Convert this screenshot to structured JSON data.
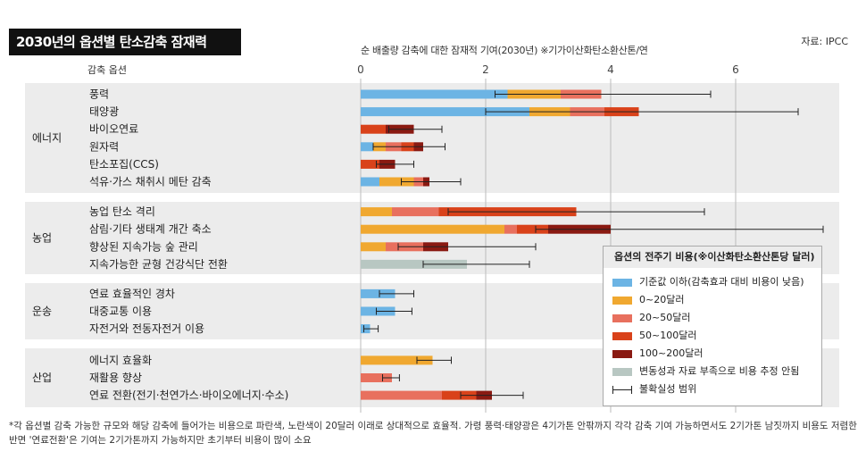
{
  "header": {
    "title": "2030년의 옵션별 탄소감축 잠재력",
    "source": "자료: IPCC",
    "axis_title": "순 배출량 감축에 대한 잠재적 기여(2030년) ※기가이산화탄소환산톤/연",
    "column_label": "감축 옵션"
  },
  "legend": {
    "title": "옵션의 전주기 비용(※이산화탄소환산톤당 달러)",
    "items": [
      {
        "label": "기준값 이하(감축효과 대비 비용이 낮음)",
        "color": "#6cb4e4"
      },
      {
        "label": "0~20달러",
        "color": "#f0a830"
      },
      {
        "label": "20~50달러",
        "color": "#e8705e"
      },
      {
        "label": "50~100달러",
        "color": "#d9421a"
      },
      {
        "label": "100~200달러",
        "color": "#8a1a12"
      },
      {
        "label": "변동성과 자료 부족으로 비용 추정 안됨",
        "color": "#b8c7c2"
      }
    ],
    "error_label": "불확실성 범위"
  },
  "footnote": "*각 옵션별 감축 가능한 규모와 해당 감축에 들어가는 비용으로 파란색, 노란색이 20달러 이래로 상대적으로 효율적. 가령 풍력·태양광은 4기가톤 안팎까지 각각 감축 기여 가능하면서도 2기가톤 남짓까지 비용도 저렴한 반면 '연료전환'은 기여는 2기가톤까지 가능하지만 초기부터 비용이 많이 소요",
  "chart_data": {
    "type": "bar",
    "orientation": "horizontal-stacked",
    "x_ticks": [
      "0",
      "2",
      "4",
      "6"
    ],
    "xlim": [
      0,
      7.6
    ],
    "cost_colors": [
      "#6cb4e4",
      "#f0a830",
      "#e8705e",
      "#d9421a",
      "#8a1a12",
      "#b8c7c2"
    ],
    "sectors": [
      {
        "name": "에너지",
        "options": [
          {
            "label": "풍력",
            "segments": [
              [
                0,
                2.35
              ],
              [
                1,
                0.85
              ],
              [
                2,
                0.65
              ]
            ],
            "err": [
              2.15,
              5.6
            ]
          },
          {
            "label": "태양광",
            "segments": [
              [
                0,
                2.7
              ],
              [
                1,
                0.65
              ],
              [
                2,
                0.55
              ],
              [
                3,
                0.55
              ]
            ],
            "err": [
              2.0,
              7.0
            ]
          },
          {
            "label": "바이오연료",
            "segments": [
              [
                3,
                0.4
              ],
              [
                4,
                0.45
              ]
            ],
            "err": [
              0.45,
              1.3
            ]
          },
          {
            "label": "원자력",
            "segments": [
              [
                0,
                0.2
              ],
              [
                1,
                0.2
              ],
              [
                2,
                0.25
              ],
              [
                3,
                0.2
              ],
              [
                4,
                0.15
              ]
            ],
            "err": [
              0.2,
              1.35
            ]
          },
          {
            "label": "탄소포집(CCS)",
            "segments": [
              [
                3,
                0.3
              ],
              [
                4,
                0.25
              ]
            ],
            "err": [
              0.25,
              0.85
            ]
          },
          {
            "label": "석유·가스 채취시 메탄 감축",
            "segments": [
              [
                0,
                0.3
              ],
              [
                1,
                0.55
              ],
              [
                2,
                0.15
              ],
              [
                4,
                0.1
              ]
            ],
            "err": [
              0.65,
              1.6
            ]
          }
        ]
      },
      {
        "name": "농업",
        "options": [
          {
            "label": "농업 탄소 격리",
            "segments": [
              [
                1,
                0.5
              ],
              [
                2,
                0.75
              ],
              [
                3,
                2.2
              ]
            ],
            "err": [
              1.4,
              5.5
            ]
          },
          {
            "label": "삼림·기타 생태계 개간 축소",
            "segments": [
              [
                1,
                2.3
              ],
              [
                2,
                0.2
              ],
              [
                3,
                0.5
              ],
              [
                4,
                1.0
              ]
            ],
            "err": [
              2.8,
              7.4
            ]
          },
          {
            "label": "향상된 지속가능 숲 관리",
            "segments": [
              [
                1,
                0.4
              ],
              [
                2,
                0.6
              ],
              [
                4,
                0.4
              ]
            ],
            "err": [
              0.6,
              2.8
            ]
          },
          {
            "label": "지속가능한 균형 건강식단 전환",
            "segments": [
              [
                5,
                1.7
              ]
            ],
            "err": [
              1.0,
              2.7
            ]
          }
        ]
      },
      {
        "name": "운송",
        "options": [
          {
            "label": "연료 효율적인 경차",
            "segments": [
              [
                0,
                0.55
              ]
            ],
            "err": [
              0.3,
              0.85
            ]
          },
          {
            "label": "대중교통 이용",
            "segments": [
              [
                0,
                0.55
              ]
            ],
            "err": [
              0.25,
              0.82
            ]
          },
          {
            "label": "자전거와 전동자전거 이용",
            "segments": [
              [
                0,
                0.15
              ]
            ],
            "err": [
              0.05,
              0.28
            ]
          }
        ]
      },
      {
        "name": "산업",
        "options": [
          {
            "label": "에너지 효율화",
            "segments": [
              [
                1,
                1.15
              ]
            ],
            "err": [
              0.9,
              1.45
            ]
          },
          {
            "label": "재활용 향상",
            "segments": [
              [
                2,
                0.5
              ]
            ],
            "err": [
              0.35,
              0.62
            ]
          },
          {
            "label": "연료 전환(전기·천연가스·바이오에너지·수소)",
            "segments": [
              [
                2,
                1.3
              ],
              [
                3,
                0.55
              ],
              [
                4,
                0.25
              ]
            ],
            "err": [
              1.6,
              2.6
            ]
          }
        ]
      }
    ]
  }
}
